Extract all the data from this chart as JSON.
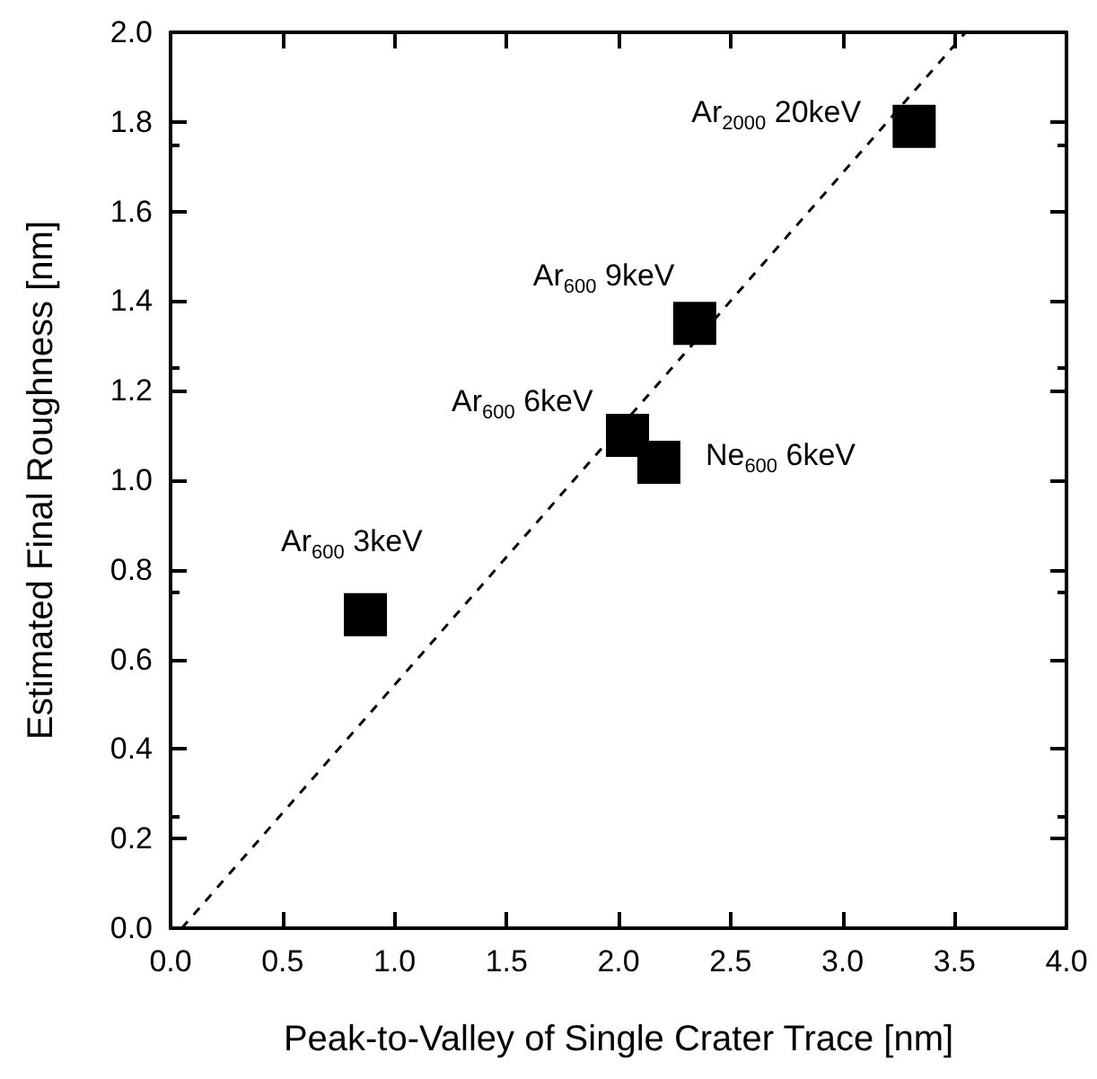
{
  "chart_data": {
    "type": "scatter",
    "xlabel": "Peak-to-Valley of Single Crater Trace [nm]",
    "ylabel": "Estimated Final Roughness [nm]",
    "xlim": [
      0,
      4
    ],
    "xticks": [
      {
        "value": 0,
        "label": "0.0"
      },
      0.5,
      {
        "value": 1,
        "label": "1.0"
      },
      1.5,
      {
        "value": 2,
        "label": "2.0"
      },
      2.5,
      {
        "value": 3,
        "label": "3.0"
      },
      3.5,
      {
        "value": 4,
        "label": "4.0"
      }
    ],
    "ylim": [
      0,
      2
    ],
    "yticks": [
      {
        "value": 0,
        "label": "0.0"
      },
      0.2,
      0.4,
      0.6,
      0.8,
      {
        "value": 1,
        "label": "1.0"
      },
      1.2,
      1.4,
      1.6,
      1.8,
      {
        "value": 2,
        "label": "2.0"
      }
    ],
    "grid": false,
    "marker": "square",
    "series": [
      {
        "color": "#000000",
        "x": [
          0.87,
          2.04,
          2.18,
          2.34,
          3.32
        ],
        "values": [
          0.7,
          1.1,
          1.04,
          1.35,
          1.79
        ]
      },
      {
        "type": "line",
        "color": "#000000",
        "line_style": "dashed",
        "marker": "none",
        "x": [
          0.05,
          3.55
        ],
        "values": [
          0,
          2.0
        ]
      }
    ],
    "annotations": [
      {
        "text": "Ar$_{600}$ 3keV",
        "x": 0.87,
        "y": 0.7
      },
      {
        "text": "Ar$_{600}$ 6keV",
        "x": 2.04,
        "y": 1.1
      },
      {
        "text": "Ne$_{600}$ 6keV",
        "x": 2.18,
        "y": 1.04
      },
      {
        "text": "Ar$_{600}$ 9keV",
        "x": 2.34,
        "y": 1.35
      },
      {
        "text": "Ar$_{2000}$ 20keV",
        "x": 3.32,
        "y": 1.79
      }
    ]
  }
}
